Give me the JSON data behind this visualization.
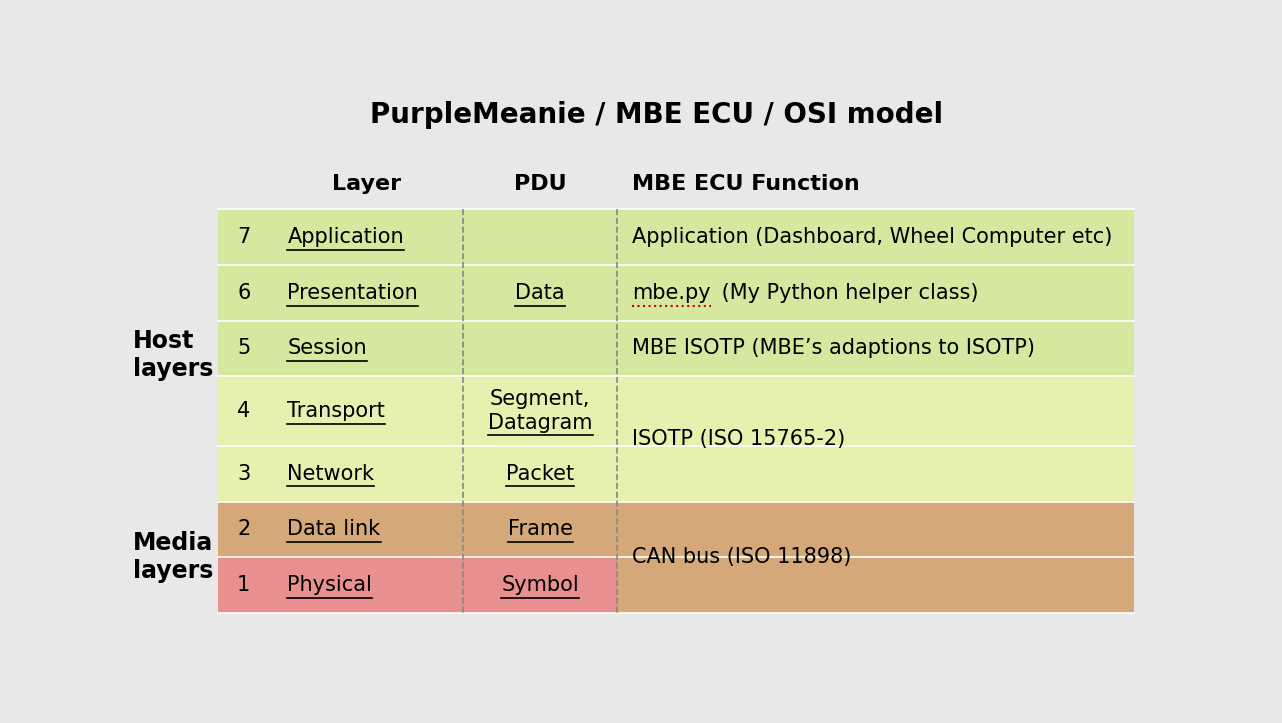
{
  "title": "PurpleMeanie / MBE ECU / OSI model",
  "title_fontsize": 20,
  "title_fontweight": "bold",
  "background_color": "#e8e8e8",
  "fig_width": 12.82,
  "fig_height": 7.23,
  "header_layer": "Layer",
  "header_pdu": "PDU",
  "header_function": "MBE ECU Function",
  "host_label": "Host\nlayers",
  "media_label": "Media\nlayers",
  "rows": [
    {
      "num": "7",
      "layer": "Application",
      "pdu": "",
      "function": "Application (Dashboard, Wheel Computer etc)",
      "row_color": "#d4e8a0",
      "func_color": "#d4e8a0",
      "underline_layer": true,
      "underline_pdu": false,
      "func_special": false
    },
    {
      "num": "6",
      "layer": "Presentation",
      "pdu": "Data",
      "function": "mbe.py (My Python helper class)",
      "row_color": "#d4e8a0",
      "func_color": "#d4e8a0",
      "underline_layer": true,
      "underline_pdu": true,
      "func_special": true
    },
    {
      "num": "5",
      "layer": "Session",
      "pdu": "",
      "function": "MBE ISOTP (MBE’s adaptions to ISOTP)",
      "row_color": "#d4e8a0",
      "func_color": "#d4e8a0",
      "underline_layer": true,
      "underline_pdu": false,
      "func_special": false
    },
    {
      "num": "4",
      "layer": "Transport",
      "pdu": "Segment,\nDatagram",
      "function": "ISOTP (ISO 15765-2)",
      "row_color": "#e8f0b0",
      "func_color": "#e8f0b0",
      "underline_layer": true,
      "underline_pdu": true,
      "func_special": false,
      "func_span": true
    },
    {
      "num": "3",
      "layer": "Network",
      "pdu": "Packet",
      "function": "",
      "row_color": "#e8f0b0",
      "func_color": "#e8f0b0",
      "underline_layer": true,
      "underline_pdu": true,
      "func_special": false
    },
    {
      "num": "2",
      "layer": "Data link",
      "pdu": "Frame",
      "function": "CAN bus (ISO 11898)",
      "row_color": "#d4a878",
      "func_color": "#d4a878",
      "underline_layer": true,
      "underline_pdu": true,
      "func_special": false,
      "func_span": true
    },
    {
      "num": "1",
      "layer": "Physical",
      "pdu": "Symbol",
      "function": "",
      "row_color": "#e89090",
      "func_color": "#d4a878",
      "underline_layer": true,
      "underline_pdu": true,
      "func_special": false
    }
  ],
  "dashed_line_color": "#888888",
  "header_fontsize": 16,
  "cell_fontsize": 15,
  "num_fontsize": 15,
  "label_fontsize": 17
}
